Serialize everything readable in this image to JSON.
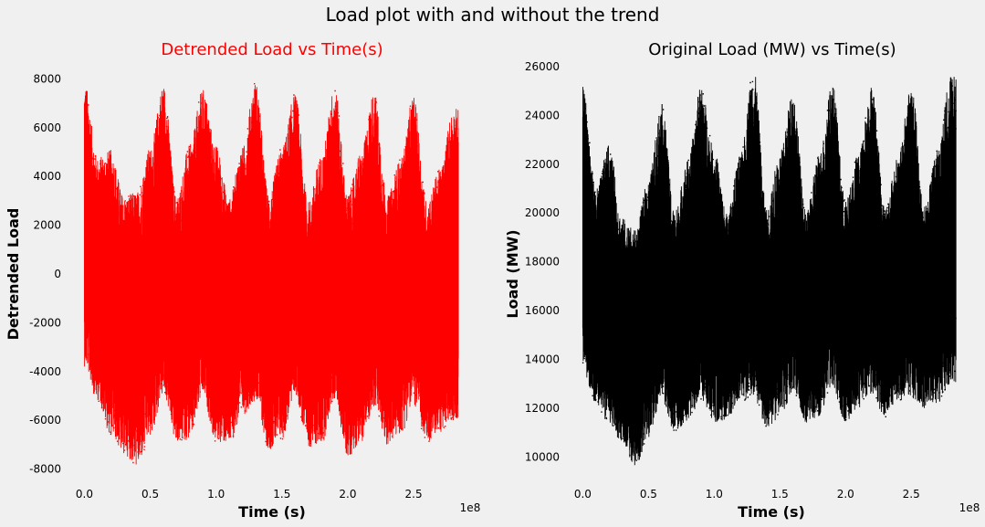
{
  "suptitle": "Load plot with and without the trend",
  "chart_data": [
    {
      "type": "scatter",
      "title": "Detrended Load vs Time(s)",
      "title_color": "#ff0000",
      "xlabel": "Time ($s$)",
      "xlabel_display": "Time (s)",
      "ylabel": "Detrended Load",
      "x_offset_label": "1e8",
      "xlim": [
        -10000000.0,
        295000000.0
      ],
      "ylim": [
        -8500,
        8500
      ],
      "x_ticks": [
        0.0,
        0.5,
        1.0,
        1.5,
        2.0,
        2.5
      ],
      "x_tick_labels": [
        "0.0",
        "0.5",
        "1.0",
        "1.5",
        "2.0",
        "2.5"
      ],
      "y_ticks": [
        -8000,
        -6000,
        -4000,
        -2000,
        0,
        2000,
        4000,
        6000,
        8000
      ],
      "y_tick_labels": [
        "-8000",
        "-6000",
        "-4000",
        "-2000",
        "0",
        "2000",
        "4000",
        "6000",
        "8000"
      ],
      "marker_color": "#ff0000",
      "grid": false,
      "x_range": [
        0.0,
        284000000.0
      ],
      "series": [
        {
          "x": [
            0.0,
            0.1,
            0.2,
            0.3,
            0.4,
            0.5,
            0.6,
            0.7,
            0.8,
            0.9,
            1.0,
            1.1,
            1.2,
            1.3,
            1.4,
            1.5,
            1.6,
            1.7,
            1.8,
            1.9,
            2.0,
            2.1,
            2.2,
            2.3,
            2.4,
            2.5,
            2.6,
            2.7,
            2.8
          ],
          "y_max": [
            7900,
            4800,
            5100,
            3200,
            3400,
            5200,
            7800,
            3200,
            5300,
            7600,
            5300,
            3100,
            5200,
            7900,
            3300,
            5200,
            7400,
            3000,
            4900,
            7700,
            3300,
            5000,
            7500,
            3200,
            4700,
            7300,
            3000,
            4300,
            6800
          ],
          "y_min": [
            -3800,
            -5200,
            -6600,
            -7400,
            -7900,
            -6700,
            -5000,
            -6900,
            -6800,
            -5100,
            -6900,
            -7000,
            -5800,
            -5200,
            -7200,
            -6800,
            -5000,
            -7100,
            -7000,
            -5200,
            -7500,
            -6900,
            -5500,
            -7000,
            -6600,
            -5400,
            -6900,
            -6500,
            -6000
          ]
        }
      ]
    },
    {
      "type": "scatter",
      "title": "Original Load ($MW$) vs Time(s)",
      "title_display": "Original Load (MW) vs Time(s)",
      "title_color": "#000000",
      "xlabel": "Time ($s$)",
      "xlabel_display": "Time (s)",
      "ylabel": "Load ($MW$)",
      "ylabel_display": "Load (MW)",
      "x_offset_label": "1e8",
      "xlim": [
        -10000000.0,
        295000000.0
      ],
      "ylim": [
        9000,
        26000
      ],
      "x_ticks": [
        0.0,
        0.5,
        1.0,
        1.5,
        2.0,
        2.5
      ],
      "x_tick_labels": [
        "0.0",
        "0.5",
        "1.0",
        "1.5",
        "2.0",
        "2.5"
      ],
      "y_ticks": [
        10000,
        12000,
        14000,
        16000,
        18000,
        20000,
        22000,
        24000,
        26000
      ],
      "y_tick_labels": [
        "10000",
        "12000",
        "14000",
        "16000",
        "18000",
        "20000",
        "22000",
        "24000",
        "26000"
      ],
      "marker_color": "#000000",
      "grid": false,
      "x_range": [
        0.0,
        284000000.0
      ],
      "series": [
        {
          "x": [
            0.0,
            0.1,
            0.2,
            0.3,
            0.4,
            0.5,
            0.6,
            0.7,
            0.8,
            0.9,
            1.0,
            1.1,
            1.2,
            1.3,
            1.4,
            1.5,
            1.6,
            1.7,
            1.8,
            1.9,
            2.0,
            2.1,
            2.2,
            2.3,
            2.4,
            2.5,
            2.6,
            2.7,
            2.8
          ],
          "y_max": [
            25200,
            21000,
            22800,
            19800,
            19300,
            21400,
            24500,
            20100,
            22200,
            25200,
            22600,
            20000,
            22400,
            25900,
            20200,
            22500,
            25000,
            20000,
            22500,
            25300,
            20500,
            22500,
            25300,
            20300,
            22300,
            25400,
            20300,
            22600,
            25600
          ],
          "y_min": [
            13500,
            12200,
            11300,
            10600,
            9600,
            10800,
            12300,
            11000,
            11500,
            12300,
            11400,
            11500,
            12200,
            12400,
            11200,
            11600,
            12600,
            11400,
            11600,
            12800,
            11400,
            12000,
            12500,
            11600,
            12300,
            12400,
            12000,
            12200,
            13000
          ]
        }
      ]
    }
  ]
}
